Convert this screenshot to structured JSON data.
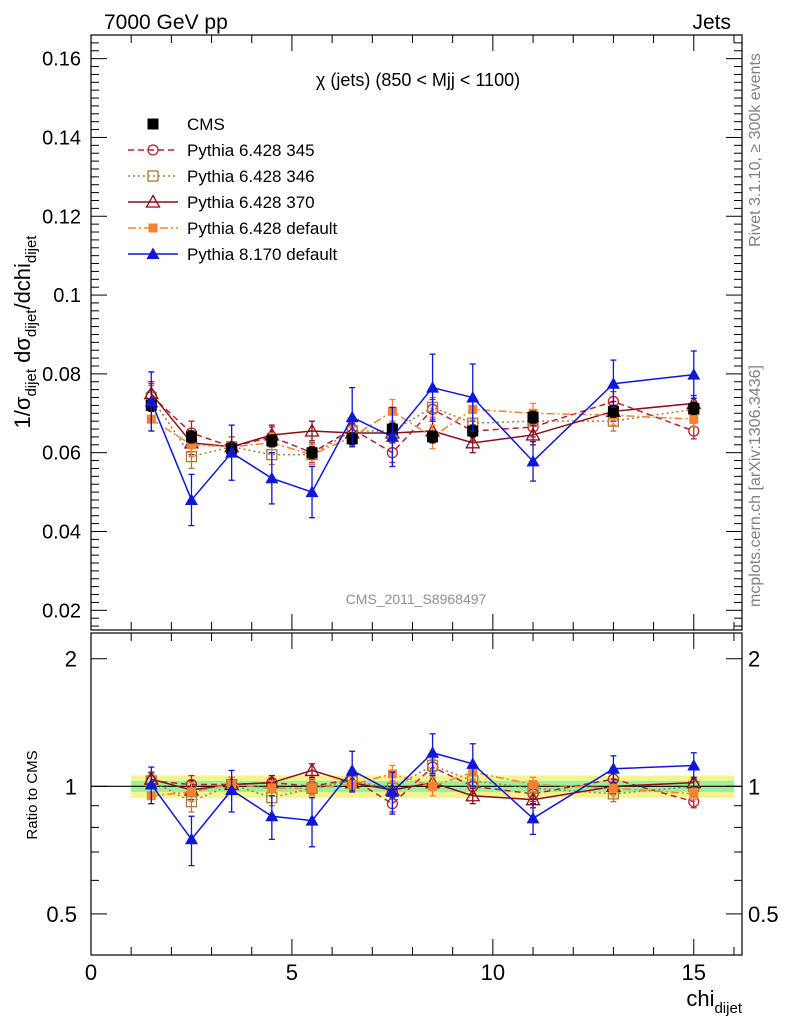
{
  "header": {
    "left": "7000 GeV pp",
    "right": "Jets"
  },
  "side_labels": {
    "rivet": "Rivet 3.1.10, ≥ 300k events",
    "mcplots": "mcplots.cern.ch [arXiv:1306.3436]"
  },
  "colors": {
    "CMS": "#000000",
    "Pythia 6.428 345": "#b22237",
    "Pythia 6.428 346": "#a87a3c",
    "Pythia 6.428 370": "#8b0f1a",
    "Pythia 6.428 default": "#f58232",
    "Pythia 8.170 default": "#0f17d9",
    "band_inner": "#9cf09c",
    "band_outer": "#f4f48c"
  },
  "chart_data": [
    {
      "type": "line",
      "title": "χ (jets) (850 < Mjj < 1100)",
      "analysis_tag": "CMS_2011_S8968497",
      "ylabel": "1/σ_dijet dσ_dijet/dchi_dijet",
      "xlabel": "chi_dijet",
      "xlim": [
        0,
        16.2
      ],
      "ylim": [
        0.015,
        0.166
      ],
      "yticks": [
        "0.02",
        "0.04",
        "0.06",
        "0.08",
        "0.1",
        "0.12",
        "0.14",
        "0.16"
      ],
      "xticks": [
        "0",
        "5",
        "10",
        "15"
      ],
      "x": [
        1.5,
        2.5,
        3.5,
        4.5,
        5.5,
        6.5,
        7.5,
        8.5,
        9.5,
        11,
        13,
        15
      ],
      "legend_position": "top-left",
      "series": [
        {
          "name": "CMS",
          "marker": "filled-square",
          "line": "none",
          "values": [
            0.072,
            0.064,
            0.061,
            0.063,
            0.06,
            0.0635,
            0.066,
            0.064,
            0.0655,
            0.069,
            0.0705,
            0.0712
          ],
          "errors": [
            0.0015,
            0.0015,
            0.0015,
            0.0015,
            0.0015,
            0.0015,
            0.0015,
            0.0015,
            0.0015,
            0.0015,
            0.0015,
            0.0015
          ]
        },
        {
          "name": "Pythia 6.428 345",
          "marker": "open-circle",
          "line": "dashed",
          "values": [
            0.0745,
            0.065,
            0.0615,
            0.064,
            0.06,
            0.066,
            0.06,
            0.071,
            0.0655,
            0.0665,
            0.073,
            0.0655
          ],
          "errors": [
            0.003,
            0.003,
            0.0025,
            0.0025,
            0.0025,
            0.0025,
            0.0025,
            0.0025,
            0.0025,
            0.0025,
            0.0025,
            0.002
          ]
        },
        {
          "name": "Pythia 6.428 346",
          "marker": "open-square",
          "line": "dotted",
          "values": [
            0.074,
            0.059,
            0.0615,
            0.0595,
            0.0595,
            0.0655,
            0.0655,
            0.0715,
            0.0675,
            0.068,
            0.068,
            0.071
          ],
          "errors": [
            0.003,
            0.003,
            0.0025,
            0.0025,
            0.0025,
            0.0025,
            0.0025,
            0.0025,
            0.0025,
            0.0025,
            0.0025,
            0.002
          ]
        },
        {
          "name": "Pythia 6.428 370",
          "marker": "open-triangle",
          "line": "solid",
          "values": [
            0.075,
            0.0625,
            0.0615,
            0.0645,
            0.0655,
            0.065,
            0.065,
            0.0655,
            0.0625,
            0.0645,
            0.0705,
            0.0725
          ],
          "errors": [
            0.003,
            0.003,
            0.0025,
            0.0025,
            0.0025,
            0.0025,
            0.0025,
            0.0025,
            0.0025,
            0.0025,
            0.0025,
            0.002
          ]
        },
        {
          "name": "Pythia 6.428 default",
          "marker": "filled-square-small",
          "line": "dashdot",
          "values": [
            0.0685,
            0.062,
            0.0615,
            0.0625,
            0.0595,
            0.064,
            0.0705,
            0.064,
            0.071,
            0.07,
            0.0695,
            0.0685
          ],
          "errors": [
            0.003,
            0.003,
            0.0025,
            0.0025,
            0.0025,
            0.0025,
            0.003,
            0.003,
            0.0025,
            0.0025,
            0.0025,
            0.002
          ]
        },
        {
          "name": "Pythia 8.170 default",
          "marker": "filled-triangle",
          "line": "solid",
          "values": [
            0.073,
            0.048,
            0.06,
            0.0535,
            0.05,
            0.069,
            0.064,
            0.0765,
            0.074,
            0.0578,
            0.0775,
            0.0798
          ],
          "errors": [
            0.0075,
            0.0065,
            0.007,
            0.0065,
            0.0065,
            0.0075,
            0.0075,
            0.0085,
            0.0085,
            0.005,
            0.006,
            0.006
          ]
        }
      ]
    },
    {
      "type": "line",
      "ylabel": "Ratio to CMS",
      "xlabel": "chi_dijet",
      "log_y": true,
      "xlim": [
        0,
        16.2
      ],
      "ylim": [
        0.4,
        2.3
      ],
      "yticks": [
        "0.5",
        "1",
        "2"
      ],
      "xticks": [
        "0",
        "5",
        "10",
        "15"
      ],
      "x": [
        1.5,
        2.5,
        3.5,
        4.5,
        5.5,
        6.5,
        7.5,
        8.5,
        9.5,
        11,
        13,
        15
      ],
      "band_xrange": [
        1,
        16
      ],
      "band_inner": [
        0.97,
        1.03
      ],
      "band_outer": [
        0.94,
        1.06
      ],
      "series": [
        {
          "name": "Pythia 6.428 345",
          "values": [
            1.03,
            1.01,
            1.01,
            1.02,
            1.0,
            1.04,
            0.91,
            1.11,
            1.0,
            0.96,
            1.04,
            0.92
          ],
          "errors": [
            0.04,
            0.05,
            0.04,
            0.04,
            0.04,
            0.04,
            0.04,
            0.04,
            0.04,
            0.04,
            0.04,
            0.03
          ]
        },
        {
          "name": "Pythia 6.428 346",
          "values": [
            1.03,
            0.92,
            1.01,
            0.94,
            0.99,
            1.03,
            0.99,
            1.12,
            1.03,
            0.99,
            0.96,
            1.0
          ],
          "errors": [
            0.04,
            0.05,
            0.04,
            0.04,
            0.04,
            0.04,
            0.04,
            0.04,
            0.04,
            0.04,
            0.04,
            0.03
          ]
        },
        {
          "name": "Pythia 6.428 370",
          "values": [
            1.04,
            0.98,
            1.01,
            1.02,
            1.09,
            1.02,
            0.98,
            1.02,
            0.95,
            0.93,
            1.0,
            1.02
          ],
          "errors": [
            0.04,
            0.05,
            0.04,
            0.04,
            0.04,
            0.04,
            0.04,
            0.04,
            0.04,
            0.04,
            0.04,
            0.03
          ]
        },
        {
          "name": "Pythia 6.428 default",
          "values": [
            0.95,
            0.97,
            1.01,
            0.99,
            0.99,
            1.01,
            1.07,
            1.0,
            1.08,
            1.01,
            0.99,
            0.96
          ],
          "errors": [
            0.04,
            0.05,
            0.04,
            0.04,
            0.04,
            0.04,
            0.05,
            0.05,
            0.04,
            0.04,
            0.04,
            0.03
          ]
        },
        {
          "name": "Pythia 8.170 default",
          "values": [
            1.01,
            0.75,
            0.98,
            0.85,
            0.83,
            1.09,
            0.97,
            1.2,
            1.13,
            0.84,
            1.1,
            1.12
          ],
          "errors": [
            0.1,
            0.1,
            0.11,
            0.1,
            0.11,
            0.12,
            0.11,
            0.13,
            0.13,
            0.07,
            0.08,
            0.08
          ]
        }
      ]
    }
  ]
}
